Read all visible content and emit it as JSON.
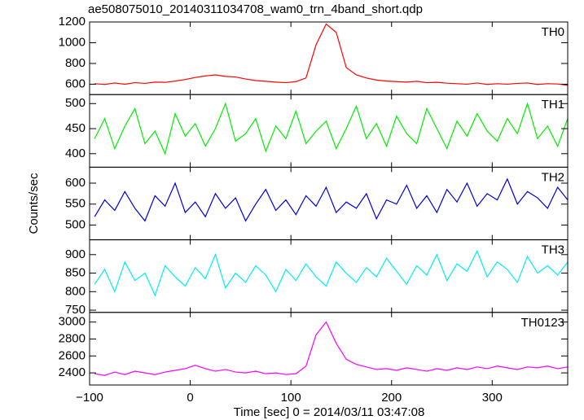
{
  "chart_data": {
    "type": "line",
    "title": "ae508075010_20140311034708_wam0_trn_4band_short.qdp",
    "xlabel": "Time [sec] 0 = 2014/03/11 03:47:08",
    "ylabel": "Counts/sec",
    "xlim": [
      -100,
      375
    ],
    "xticks": [
      {
        "value": -100,
        "label": "−100"
      },
      0,
      100,
      200,
      300
    ],
    "x": [
      -95,
      -85,
      -75,
      -65,
      -55,
      -45,
      -35,
      -25,
      -15,
      -5,
      5,
      15,
      25,
      35,
      45,
      55,
      65,
      75,
      85,
      95,
      105,
      115,
      125,
      135,
      145,
      155,
      165,
      175,
      185,
      195,
      205,
      215,
      225,
      235,
      245,
      255,
      265,
      275,
      285,
      295,
      305,
      315,
      325,
      335,
      345,
      355,
      365,
      375
    ],
    "series": [
      {
        "name": "TH0",
        "color": "#ff0000",
        "ylim": [
          500,
          1200
        ],
        "yticks": [
          600,
          800,
          1000,
          1200
        ],
        "values": [
          605,
          598,
          612,
          600,
          615,
          608,
          620,
          618,
          630,
          645,
          665,
          680,
          690,
          675,
          670,
          650,
          635,
          628,
          620,
          615,
          625,
          660,
          980,
          1180,
          1100,
          760,
          690,
          660,
          640,
          630,
          625,
          620,
          628,
          615,
          618,
          610,
          605,
          600,
          612,
          598,
          605,
          600,
          608,
          612,
          598,
          605,
          602,
          590
        ]
      },
      {
        "name": "TH1",
        "color": "#00ee00",
        "ylim": [
          373,
          518
        ],
        "yticks": [
          400,
          450,
          500
        ],
        "values": [
          430,
          470,
          410,
          455,
          490,
          420,
          445,
          400,
          480,
          435,
          460,
          415,
          450,
          500,
          425,
          440,
          470,
          405,
          455,
          430,
          485,
          420,
          445,
          465,
          410,
          450,
          495,
          430,
          460,
          415,
          475,
          440,
          420,
          490,
          450,
          410,
          465,
          435,
          480,
          445,
          425,
          470,
          440,
          500,
          430,
          455,
          415,
          470
        ]
      },
      {
        "name": "TH2",
        "color": "#0000dd",
        "ylim": [
          465,
          638
        ],
        "yticks": [
          500,
          550,
          600
        ],
        "values": [
          520,
          560,
          535,
          580,
          540,
          510,
          570,
          545,
          600,
          530,
          555,
          520,
          575,
          540,
          565,
          510,
          550,
          585,
          535,
          560,
          525,
          570,
          545,
          590,
          530,
          555,
          540,
          575,
          515,
          560,
          550,
          595,
          540,
          570,
          530,
          585,
          555,
          600,
          545,
          575,
          560,
          610,
          550,
          580,
          565,
          540,
          590,
          560
        ]
      },
      {
        "name": "TH3",
        "color": "#00eeee",
        "ylim": [
          744,
          940
        ],
        "yticks": [
          750,
          800,
          850,
          900
        ],
        "values": [
          820,
          860,
          800,
          880,
          830,
          850,
          790,
          870,
          840,
          815,
          865,
          835,
          900,
          810,
          850,
          825,
          870,
          845,
          800,
          860,
          830,
          875,
          840,
          815,
          880,
          850,
          825,
          865,
          840,
          890,
          855,
          820,
          870,
          845,
          900,
          830,
          875,
          855,
          910,
          840,
          880,
          860,
          825,
          895,
          850,
          870,
          845,
          880
        ]
      },
      {
        "name": "TH0123",
        "color": "#ff00ff",
        "ylim": [
          2257,
          3114
        ],
        "yticks": [
          2400,
          2600,
          2800,
          3000
        ],
        "values": [
          2390,
          2370,
          2410,
          2380,
          2420,
          2400,
          2380,
          2410,
          2430,
          2450,
          2490,
          2450,
          2420,
          2440,
          2410,
          2400,
          2420,
          2390,
          2400,
          2380,
          2390,
          2480,
          2850,
          3000,
          2750,
          2560,
          2500,
          2470,
          2440,
          2450,
          2430,
          2460,
          2440,
          2420,
          2450,
          2430,
          2460,
          2440,
          2470,
          2450,
          2480,
          2460,
          2440,
          2470,
          2460,
          2480,
          2450,
          2470
        ]
      }
    ]
  }
}
